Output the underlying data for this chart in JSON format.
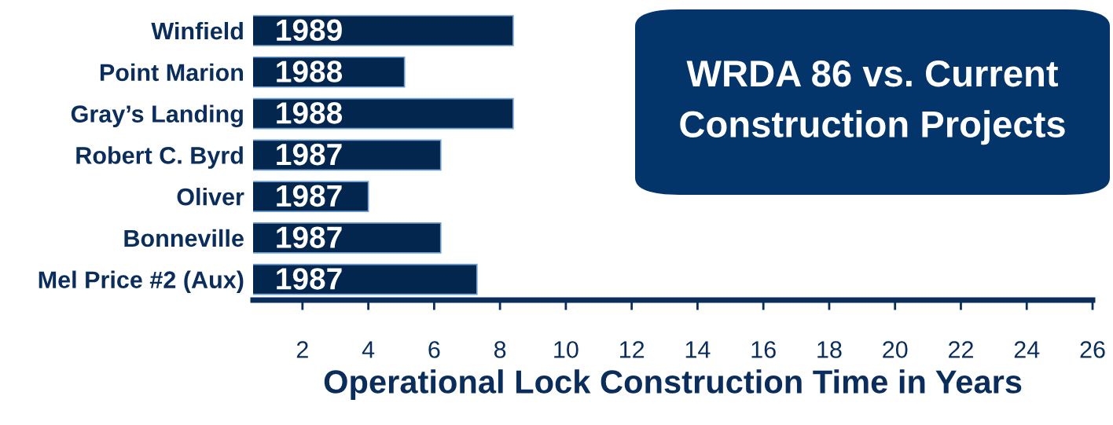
{
  "chart_data": {
    "type": "bar",
    "orientation": "horizontal",
    "title": "WRDA 86 vs. Current Construction Projects",
    "xlabel": "Operational Lock Construction Time in Years",
    "categories": [
      "Winfield",
      "Point Marion",
      "Gray’s Landing",
      "Robert C. Byrd",
      "Oliver",
      "Bonneville",
      "Mel Price #2 (Aux)"
    ],
    "values": [
      8.4,
      5.1,
      8.4,
      6.2,
      4.0,
      6.2,
      7.3
    ],
    "color": "#03264f",
    "xlim": [
      0.5,
      26
    ],
    "xticks": [
      2,
      4,
      6,
      8,
      10,
      12,
      14,
      16,
      18,
      20,
      22,
      24,
      26
    ],
    "annotations": [
      "1989",
      "1988",
      "1988",
      "1987",
      "1987",
      "1987",
      "1987"
    ]
  }
}
